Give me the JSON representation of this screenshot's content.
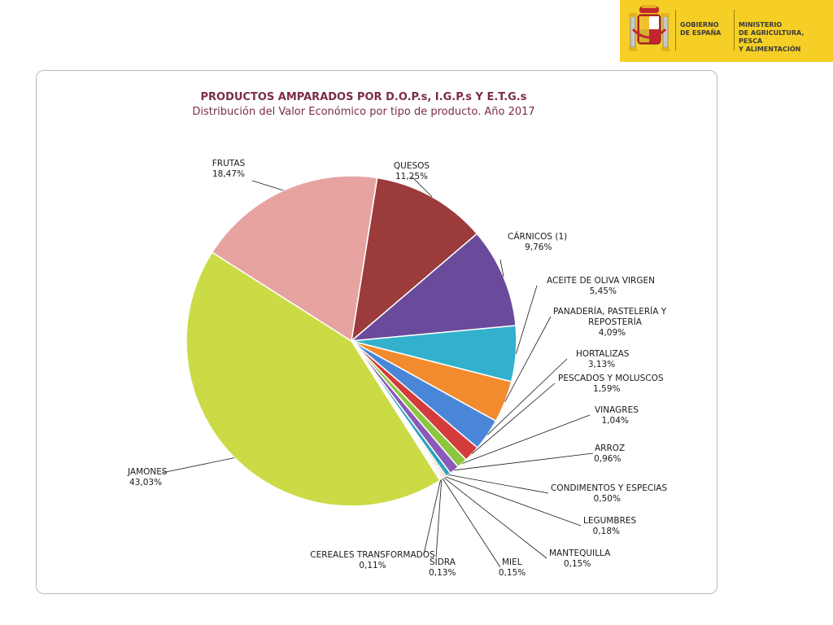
{
  "header": {
    "government": "GOBIERNO\nDE ESPAÑA",
    "ministry": "MINISTERIO\nDE AGRICULTURA, PESCA\nY ALIMENTACIÓN",
    "brand_color": "#f5cf25",
    "emblem_icon": "coat-of-arms-icon"
  },
  "chart_data": {
    "type": "pie",
    "title": "PRODUCTOS AMPARADOS POR  D.O.P.s, I.G.P.s Y E.T.G.s",
    "subtitle": "Distribución del Valor Económico por tipo de producto. Año 2017",
    "slices": [
      {
        "label": "QUESOS",
        "value": 11.25,
        "text": "11,25%",
        "color": "#9b3b3b"
      },
      {
        "label": "CÁRNICOS (1)",
        "value": 9.76,
        "text": "9,76%",
        "color": "#6a4a9a"
      },
      {
        "label": "ACEITE DE OLIVA VIRGEN",
        "value": 5.45,
        "text": "5,45%",
        "color": "#33b1cc"
      },
      {
        "label": "PANADERÍA, PASTELERÍA Y REPOSTERÍA",
        "value": 4.09,
        "text": "4,09%",
        "color": "#f28a2e"
      },
      {
        "label": "HORTALIZAS",
        "value": 3.13,
        "text": "3,13%",
        "color": "#4a86d8"
      },
      {
        "label": "PESCADOS Y MOLUSCOS",
        "value": 1.59,
        "text": "1,59%",
        "color": "#d43b3b"
      },
      {
        "label": "VINAGRES",
        "value": 1.04,
        "text": "1,04%",
        "color": "#8dc63f"
      },
      {
        "label": "ARROZ",
        "value": 0.96,
        "text": "0,96%",
        "color": "#8a5ab8"
      },
      {
        "label": "CONDIMENTOS Y ESPECIAS",
        "value": 0.5,
        "text": "0,50%",
        "color": "#2ea2c0"
      },
      {
        "label": "LEGUMBRES",
        "value": 0.18,
        "text": "0,18%",
        "color": "#f5a04a"
      },
      {
        "label": "MANTEQUILLA",
        "value": 0.15,
        "text": "0,15%",
        "color": "#9cb8e0"
      },
      {
        "label": "MIEL",
        "value": 0.15,
        "text": "0,15%",
        "color": "#e2a0a0"
      },
      {
        "label": "SIDRA",
        "value": 0.13,
        "text": "0,13%",
        "color": "#c8dca0"
      },
      {
        "label": "CEREALES TRANSFORMADOS",
        "value": 0.11,
        "text": "0,11%",
        "color": "#b8a8d0"
      },
      {
        "label": "JAMONES",
        "value": 43.03,
        "text": "43,03%",
        "color": "#cbdb45"
      },
      {
        "label": "FRUTAS",
        "value": 18.47,
        "text": "18,47%",
        "color": "#e6a3a0"
      }
    ],
    "residual_color": "#c9d3dc",
    "legend": "none"
  }
}
